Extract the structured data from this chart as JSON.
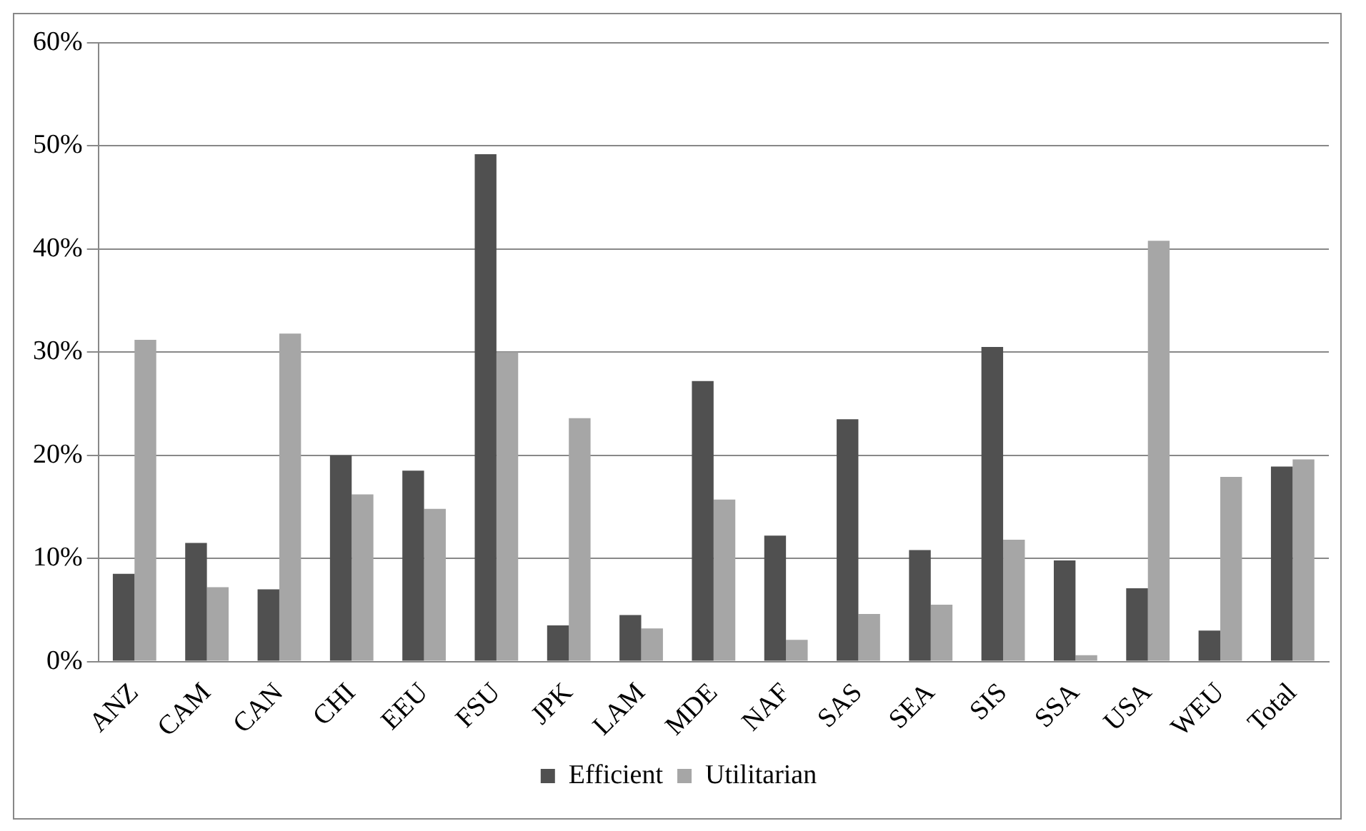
{
  "chart_data": {
    "type": "bar",
    "categories": [
      "ANZ",
      "CAM",
      "CAN",
      "CHI",
      "EEU",
      "FSU",
      "JPK",
      "LAM",
      "MDE",
      "NAF",
      "SAS",
      "SEA",
      "SIS",
      "SSA",
      "USA",
      "WEU",
      "Total"
    ],
    "series": [
      {
        "name": "Efficient",
        "color": "#505050",
        "values": [
          0.085,
          0.115,
          0.07,
          0.2,
          0.185,
          0.492,
          0.035,
          0.045,
          0.272,
          0.122,
          0.235,
          0.108,
          0.305,
          0.098,
          0.071,
          0.03,
          0.189
        ]
      },
      {
        "name": "Utilitarian",
        "color": "#a6a6a6",
        "values": [
          0.312,
          0.072,
          0.318,
          0.162,
          0.148,
          0.3,
          0.236,
          0.032,
          0.157,
          0.021,
          0.046,
          0.055,
          0.118,
          0.006,
          0.408,
          0.179,
          0.196
        ]
      }
    ],
    "ylim": [
      0,
      0.6
    ],
    "yticks": [
      {
        "value": 0,
        "label": "0%"
      },
      {
        "value": 0.1,
        "label": "10%"
      },
      {
        "value": 0.2,
        "label": "20%"
      },
      {
        "value": 0.3,
        "label": "30%"
      },
      {
        "value": 0.4,
        "label": "40%"
      },
      {
        "value": 0.5,
        "label": "50%"
      },
      {
        "value": 0.6,
        "label": "60%"
      }
    ],
    "grid": "y",
    "legend": "bottom"
  }
}
